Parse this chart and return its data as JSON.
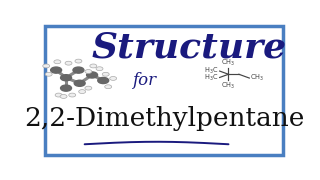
{
  "bg_color": "#ffffff",
  "border_color": "#4a7fc1",
  "border_linewidth": 2.5,
  "title_text": "Structure",
  "title_color": "#1a1a7e",
  "title_fontsize": 26,
  "for_text": "for",
  "for_color": "#1a1a7e",
  "for_fontsize": 12,
  "main_text": "2,2-Dimethylpentane",
  "main_color": "#111111",
  "main_fontsize": 19,
  "wave_color": "#1a1a7e",
  "struct_color": "#444444",
  "struct_fs": 4.8,
  "qx": 0.76,
  "qy": 0.62,
  "bl": 0.042
}
